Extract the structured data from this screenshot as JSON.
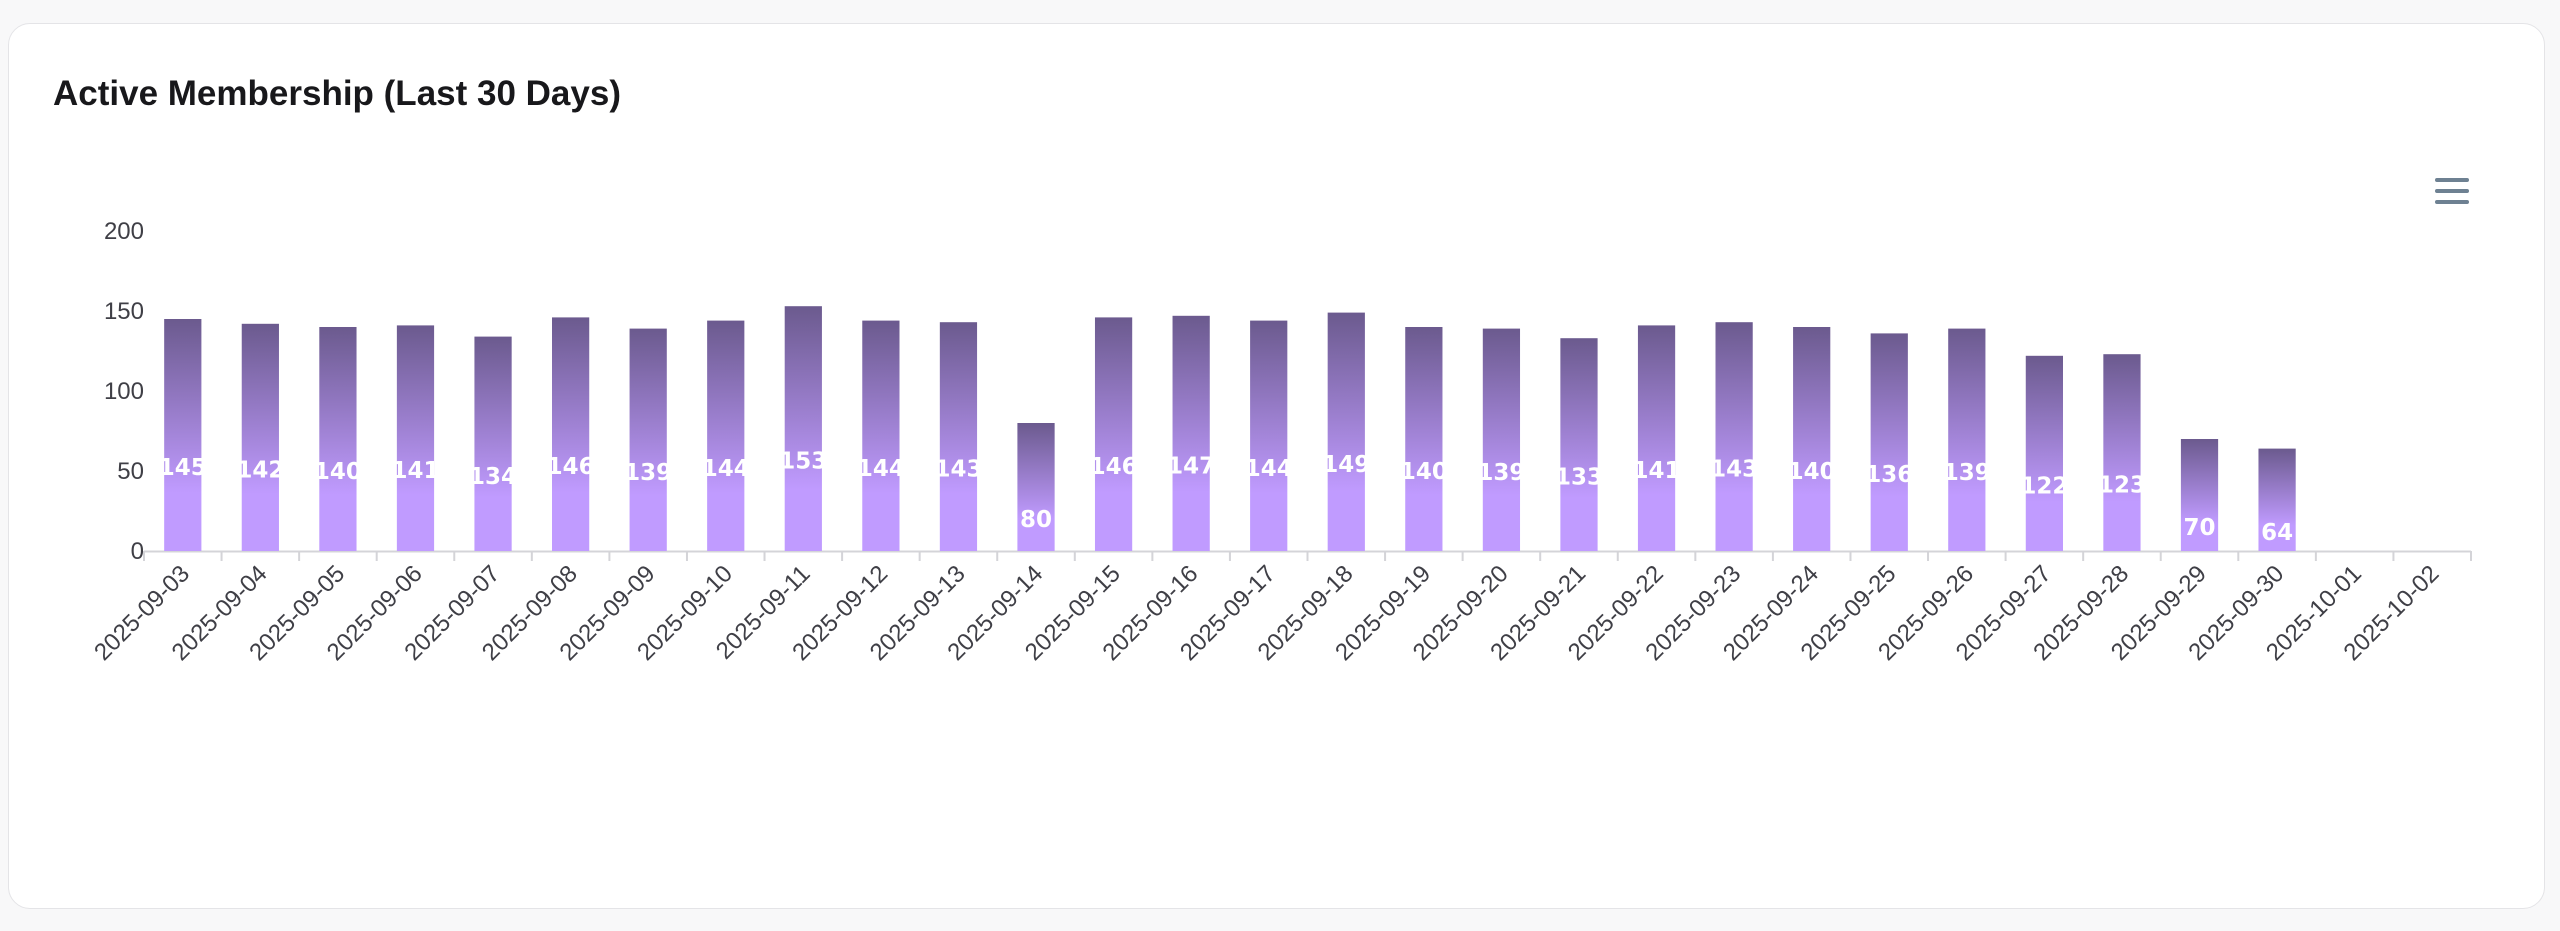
{
  "card": {
    "title": "Active Membership (Last 30 Days)",
    "menu_icon": "hamburger-menu-icon"
  },
  "chart_data": {
    "type": "bar",
    "categories": [
      "2025-09-03",
      "2025-09-04",
      "2025-09-05",
      "2025-09-06",
      "2025-09-07",
      "2025-09-08",
      "2025-09-09",
      "2025-09-10",
      "2025-09-11",
      "2025-09-12",
      "2025-09-13",
      "2025-09-14",
      "2025-09-15",
      "2025-09-16",
      "2025-09-17",
      "2025-09-18",
      "2025-09-19",
      "2025-09-20",
      "2025-09-21",
      "2025-09-22",
      "2025-09-23",
      "2025-09-24",
      "2025-09-25",
      "2025-09-26",
      "2025-09-27",
      "2025-09-28",
      "2025-09-29",
      "2025-09-30",
      "2025-10-01",
      "2025-10-02"
    ],
    "values": [
      145,
      142,
      140,
      141,
      134,
      146,
      139,
      144,
      153,
      144,
      143,
      80,
      146,
      147,
      144,
      149,
      140,
      139,
      133,
      141,
      143,
      140,
      136,
      139,
      122,
      123,
      70,
      64,
      null,
      null
    ],
    "ylim": [
      0,
      200
    ],
    "yticks": [
      0,
      50,
      100,
      150,
      200
    ],
    "grid": false,
    "data_labels": true,
    "bar_gradient": [
      "#6b5a8e",
      "#c09bff"
    ],
    "axis_color": "#d4d4d8"
  }
}
